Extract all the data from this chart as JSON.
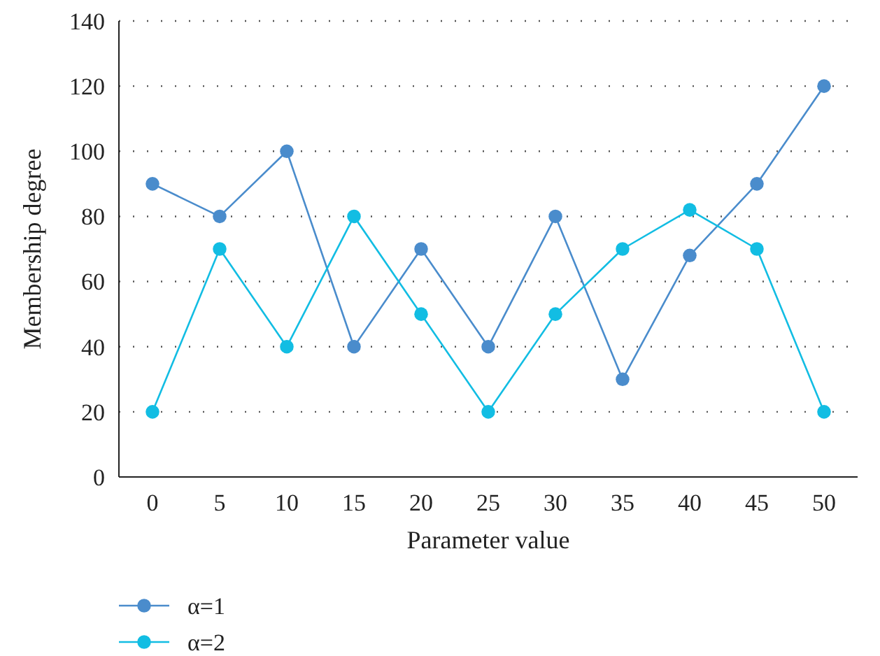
{
  "chart_data": {
    "type": "line",
    "xlabel": "Parameter value",
    "ylabel": "Membership degree",
    "categories": [
      "0",
      "5",
      "10",
      "15",
      "20",
      "25",
      "30",
      "35",
      "40",
      "45",
      "50"
    ],
    "series": [
      {
        "name": "α=1",
        "color": "#4a8ccc",
        "values": [
          90,
          80,
          100,
          40,
          70,
          40,
          80,
          30,
          68,
          90,
          120
        ]
      },
      {
        "name": "α=2",
        "color": "#12bde3",
        "values": [
          20,
          70,
          40,
          80,
          50,
          20,
          50,
          70,
          82,
          70,
          20
        ]
      }
    ],
    "ylim": [
      0,
      140
    ],
    "yticks": [
      0,
      20,
      40,
      60,
      80,
      100,
      120,
      140
    ],
    "grid": "y",
    "legend": "bottom left",
    "marker": "circle",
    "line_style": "solid"
  }
}
